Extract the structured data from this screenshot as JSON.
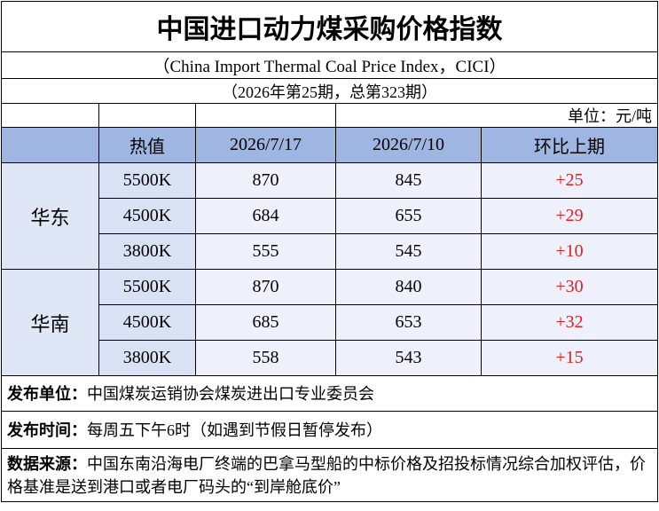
{
  "header": {
    "title": "中国进口动力煤采购价格指数",
    "subtitle": "（China Import Thermal Coal Price Index，CICI）",
    "issue": "（2026年第25期，总第323期）",
    "unit": "单位：元/吨"
  },
  "table": {
    "columns": [
      "热值",
      "2026/7/17",
      "2026/7/10",
      "环比上期"
    ],
    "groups": [
      {
        "region": "华东",
        "rows": [
          [
            "5500K",
            "870",
            "845",
            "+25"
          ],
          [
            "4500K",
            "684",
            "655",
            "+29"
          ],
          [
            "3800K",
            "555",
            "545",
            "+10"
          ]
        ]
      },
      {
        "region": "华南",
        "rows": [
          [
            "5500K",
            "870",
            "840",
            "+30"
          ],
          [
            "4500K",
            "685",
            "653",
            "+32"
          ],
          [
            "3800K",
            "558",
            "543",
            "+15"
          ]
        ]
      }
    ]
  },
  "footer": [
    {
      "label": "发布单位：",
      "text": "中国煤炭运销协会煤炭进出口专业委员会"
    },
    {
      "label": "发布时间：",
      "text": "每周五下午6时（如遇到节假日暂停发布）"
    },
    {
      "label": "数据来源：",
      "text": "中国东南沿海电厂终端的巴拿马型船的中标价格及招投标情况综合加权评估，价格基准是送到港口或者电厂码头的“到岸舱底价”"
    }
  ]
}
